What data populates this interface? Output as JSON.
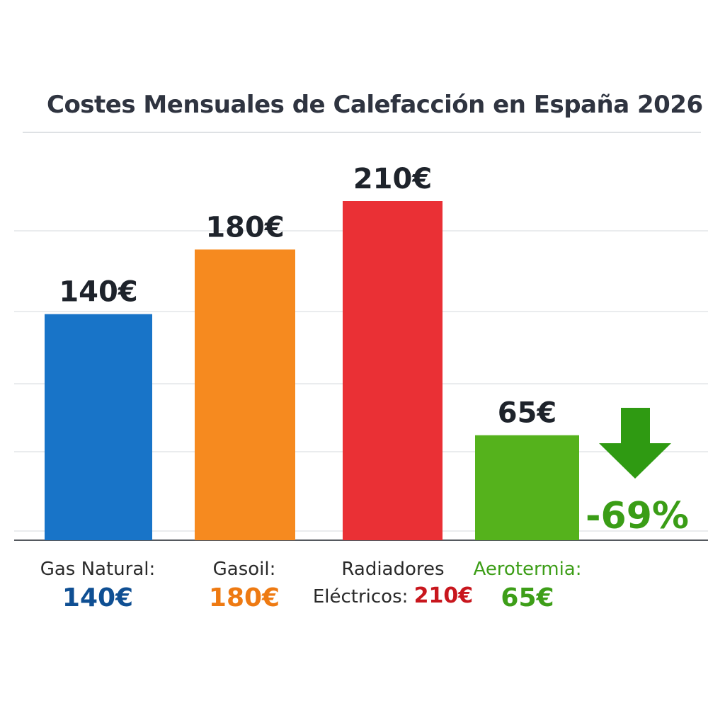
{
  "title": "Costes Mensuales de Calefacción en España 2026",
  "chart_data": {
    "type": "bar",
    "title": "Costes Mensuales de Calefacción en España 2026",
    "categories": [
      "Gas Natural",
      "Gasoil",
      "Radiadores Eléctricos",
      "Aerotermia"
    ],
    "values": [
      140,
      180,
      210,
      65
    ],
    "data_labels": [
      "140€",
      "180€",
      "210€",
      "65€"
    ],
    "colors": [
      "#1874c8",
      "#f68a1f",
      "#ea3035",
      "#55b21c"
    ],
    "grid": true,
    "ylim": [
      0,
      210
    ],
    "annotation": {
      "text": "-69%",
      "color": "#3a9d16",
      "arrow_color": "#2f9a12"
    },
    "labels": [
      {
        "name": "Gas Natural:",
        "value": "140€",
        "name_color": "#2a2a2a",
        "value_color": "#0f4f93"
      },
      {
        "name": "Gasoil:",
        "value": "180€",
        "name_color": "#2a2a2a",
        "value_color": "#ee7a12"
      },
      {
        "line1": "Radiadores",
        "line2": "Eléctricos:",
        "value": "210€",
        "name_color": "#2a2a2a",
        "value_color": "#c8161d"
      },
      {
        "name": "Aerotermia:",
        "value": "65€",
        "name_color": "#3d9e18",
        "value_color": "#3d9e18"
      }
    ]
  }
}
